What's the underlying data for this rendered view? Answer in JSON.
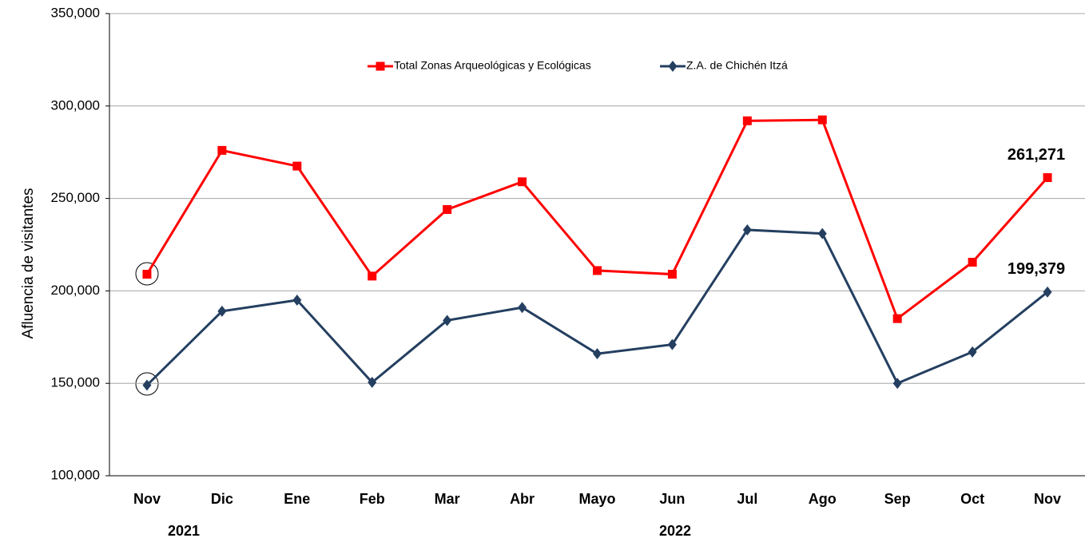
{
  "chart_data": {
    "type": "line",
    "y_label": "Afluencia de visitantes",
    "categories": [
      "Nov",
      "Dic",
      "Ene",
      "Feb",
      "Mar",
      "Abr",
      "Mayo",
      "Jun",
      "Jul",
      "Ago",
      "Sep",
      "Oct",
      "Nov"
    ],
    "years": [
      "2021",
      "2022"
    ],
    "series": [
      {
        "name": "Total Zonas Arqueológicas y Ecológicas",
        "color": "#ff0000",
        "marker": "square",
        "values": [
          209000,
          276000,
          267500,
          208000,
          244000,
          259000,
          211000,
          209000,
          292000,
          292500,
          185000,
          215500,
          261271
        ],
        "value_labels": [
          null,
          null,
          null,
          null,
          null,
          null,
          null,
          null,
          null,
          null,
          null,
          null,
          "261,271"
        ]
      },
      {
        "name": "Z.A. de Chichén Itzá",
        "color": "#243f60",
        "marker": "diamond",
        "values": [
          149000,
          189000,
          195000,
          150500,
          184000,
          191000,
          166000,
          171000,
          233000,
          231000,
          150000,
          167000,
          199379
        ],
        "value_labels": [
          null,
          null,
          null,
          null,
          null,
          null,
          null,
          null,
          null,
          null,
          null,
          null,
          "199,379"
        ]
      }
    ],
    "ylim": [
      100000,
      350000
    ],
    "yticks": [
      {
        "value": 100000,
        "label": "100,000"
      },
      {
        "value": 150000,
        "label": "150,000"
      },
      {
        "value": 200000,
        "label": "200,000"
      },
      {
        "value": 250000,
        "label": "250,000"
      },
      {
        "value": 300000,
        "label": "300,000"
      },
      {
        "value": 350000,
        "label": "350,000"
      }
    ],
    "grid": true
  }
}
